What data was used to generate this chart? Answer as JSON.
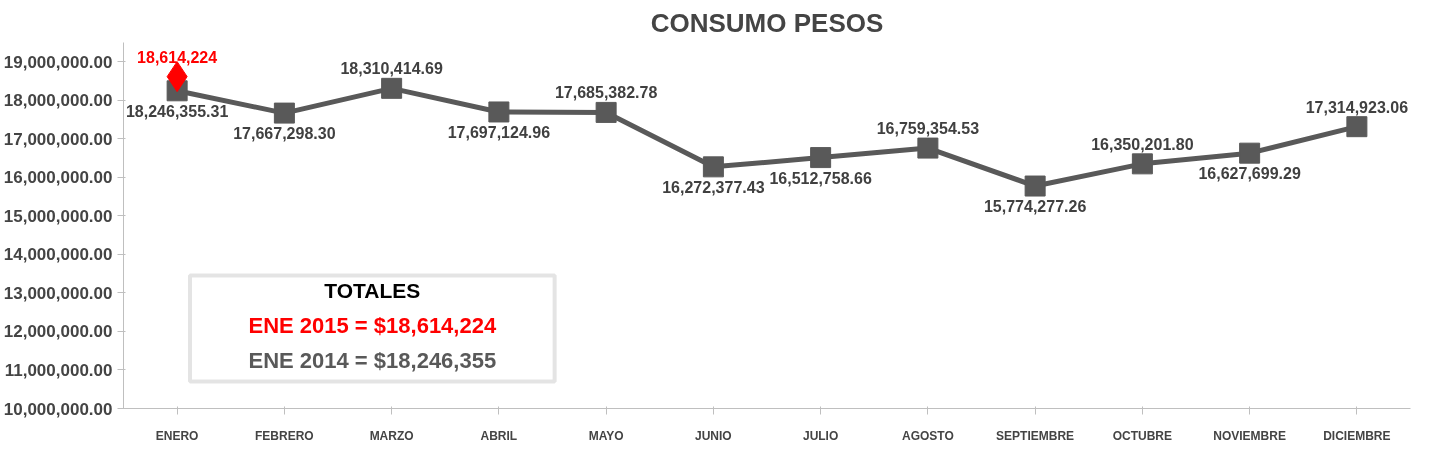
{
  "chart_data": {
    "type": "line",
    "title": "CONSUMO PESOS",
    "categories": [
      "ENERO",
      "FEBRERO",
      "MARZO",
      "ABRIL",
      "MAYO",
      "JUNIO",
      "JULIO",
      "AGOSTO",
      "SEPTIEMBRE",
      "OCTUBRE",
      "NOVIEMBRE",
      "DICIEMBRE"
    ],
    "series": [
      {
        "color": "#595959",
        "marker": "square",
        "values": [
          18246355.31,
          17667298.3,
          18310414.69,
          17697124.96,
          17685382.78,
          16272377.43,
          16512758.66,
          16759354.53,
          15774277.26,
          16350201.8,
          16627699.29,
          17314923.06
        ],
        "value_labels": [
          "18,246,355.31",
          "17,667,298.30",
          "18,310,414.69",
          "17,697,124.96",
          "17,685,382.78",
          "16,272,377.43",
          "16,512,758.66",
          "16,759,354.53",
          "15,774,277.26",
          "16,350,201.80",
          "16,627,699.29",
          "17,314,923.06"
        ]
      },
      {
        "color": "#ff0000",
        "marker": "diamond",
        "values": [
          18614224,
          null,
          null,
          null,
          null,
          null,
          null,
          null,
          null,
          null,
          null,
          null
        ],
        "value_labels": [
          "18,614,224",
          null,
          null,
          null,
          null,
          null,
          null,
          null,
          null,
          null,
          null,
          null
        ]
      }
    ],
    "ylim": [
      10000000,
      19500000
    ],
    "yticks": [
      {
        "value": 10000000,
        "label": "10,000,000.00"
      },
      {
        "value": 11000000,
        "label": "11,000,000.00"
      },
      {
        "value": 12000000,
        "label": "12,000,000.00"
      },
      {
        "value": 13000000,
        "label": "13,000,000.00"
      },
      {
        "value": 14000000,
        "label": "14,000,000.00"
      },
      {
        "value": 15000000,
        "label": "15,000,000.00"
      },
      {
        "value": 16000000,
        "label": "16,000,000.00"
      },
      {
        "value": 17000000,
        "label": "17,000,000.00"
      },
      {
        "value": 18000000,
        "label": "18,000,000.00"
      },
      {
        "value": 19000000,
        "label": "19,000,000.00"
      }
    ],
    "annotations": [
      "TOTALES",
      "ENE 2015 = $18,614,224",
      "ENE 2014 = $18,246,355"
    ]
  }
}
